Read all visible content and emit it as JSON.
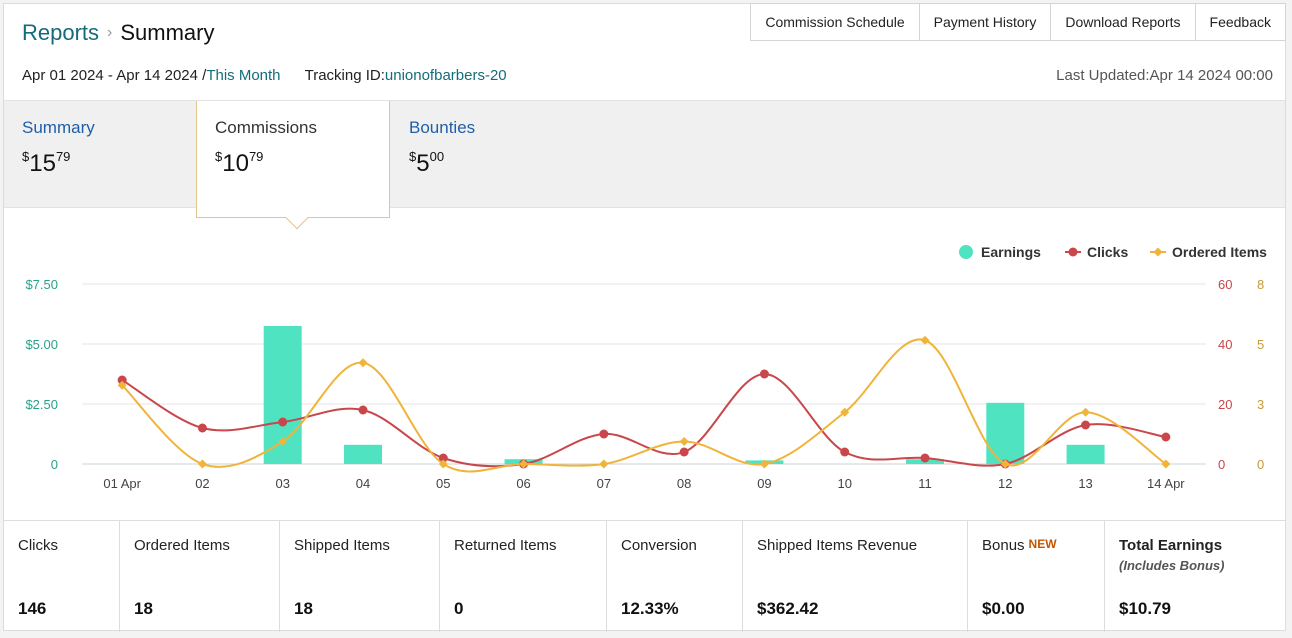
{
  "breadcrumb": {
    "parent": "Reports",
    "sep": "›",
    "current": "Summary"
  },
  "top_nav": [
    "Commission Schedule",
    "Payment History",
    "Download Reports",
    "Feedback"
  ],
  "subheader": {
    "date_range": "Apr 01 2024 - Apr 14 2024 /",
    "period_link": "This Month",
    "tracking_label": "Tracking ID:",
    "tracking_id": "unionofbarbers-20",
    "last_updated": "Last Updated:Apr 14 2024 00:00"
  },
  "tabs": [
    {
      "label": "Summary",
      "currency": "$",
      "whole": "15",
      "cents": "79"
    },
    {
      "label": "Commissions",
      "currency": "$",
      "whole": "10",
      "cents": "79"
    },
    {
      "label": "Bounties",
      "currency": "$",
      "whole": "5",
      "cents": "00"
    }
  ],
  "legend": [
    {
      "name": "Earnings",
      "color": "#50e3c2",
      "marker": "circle"
    },
    {
      "name": "Clicks",
      "color": "#c9474a",
      "marker": "circle"
    },
    {
      "name": "Ordered Items",
      "color": "#f0b43a",
      "marker": "diamond"
    }
  ],
  "chart_data": {
    "type": "bar",
    "categories": [
      "01 Apr",
      "02",
      "03",
      "04",
      "05",
      "06",
      "07",
      "08",
      "09",
      "10",
      "11",
      "12",
      "13",
      "14 Apr"
    ],
    "series": [
      {
        "name": "Earnings",
        "type": "bar",
        "axis": "left",
        "values": [
          0,
          0,
          5.75,
          0.8,
          0,
          0.2,
          0,
          0,
          0.15,
          0,
          0.2,
          2.55,
          0.8,
          0
        ]
      },
      {
        "name": "Clicks",
        "type": "line",
        "axis": "right1",
        "values": [
          28,
          12,
          14,
          18,
          2,
          0,
          10,
          4,
          30,
          4,
          2,
          0,
          13,
          9
        ]
      },
      {
        "name": "Ordered Items",
        "type": "line",
        "axis": "right2",
        "values": [
          3.5,
          0,
          1,
          4.5,
          0,
          0,
          0,
          1,
          0,
          2.3,
          5.5,
          0,
          2.3,
          0
        ]
      }
    ],
    "y_left": {
      "ticks": [
        "$7.50",
        "$5.00",
        "$2.50",
        "0"
      ],
      "range": [
        0,
        7.5
      ],
      "color": "#2aa08a"
    },
    "y_right1": {
      "ticks": [
        "60",
        "40",
        "20",
        "0"
      ],
      "range": [
        0,
        60
      ],
      "color": "#c9474a"
    },
    "y_right2": {
      "ticks": [
        "8",
        "5",
        "3",
        "0"
      ],
      "range": [
        0,
        8
      ],
      "color": "#c89a35"
    },
    "grid": true,
    "legend_position": "top-right"
  },
  "stats": [
    {
      "label": "Clicks",
      "value": "146"
    },
    {
      "label": "Ordered Items",
      "value": "18"
    },
    {
      "label": "Shipped Items",
      "value": "18"
    },
    {
      "label": "Returned Items",
      "value": "0"
    },
    {
      "label": "Conversion",
      "value": "12.33%"
    },
    {
      "label": "Shipped Items Revenue",
      "value": "$362.42"
    },
    {
      "label": "Bonus",
      "badge": "NEW",
      "value": "$0.00"
    },
    {
      "label": "Total Earnings",
      "note": "(Includes Bonus)",
      "value": "$10.79"
    }
  ]
}
